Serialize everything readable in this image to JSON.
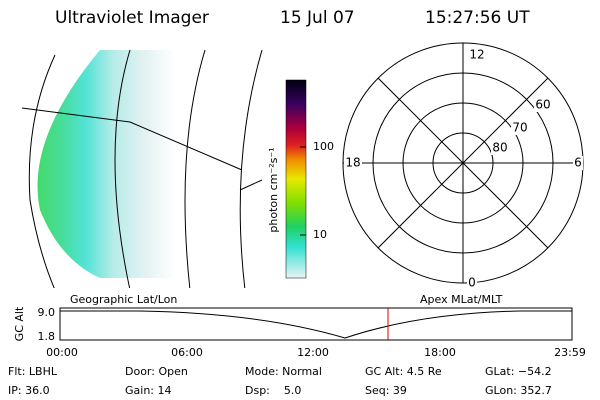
{
  "header": {
    "title": "Ultraviolet Imager",
    "date": "15 Jul 07",
    "time": "15:27:56 UT"
  },
  "colorbar": {
    "label": "photon cm⁻²s⁻¹",
    "ticks": [
      "100",
      "10"
    ]
  },
  "polar": {
    "mlt_labels": [
      "12",
      "18",
      "6",
      "0"
    ],
    "lat_labels": [
      "60",
      "70",
      "80"
    ]
  },
  "timeline": {
    "left_title": "Geographic Lat/Lon",
    "right_title": "Apex MLat/MLT",
    "y_label": "GC Alt",
    "y_labels": [
      "9.0",
      "1.8"
    ],
    "x_labels": [
      "00:00",
      "06:00",
      "12:00",
      "18:00",
      "23:59"
    ]
  },
  "status": {
    "rows": [
      [
        "Flt: LBHL",
        "Door: Open",
        "Mode: Normal",
        "GC Alt: 4.5 Re",
        "GLat: −54.2"
      ],
      [
        "IP: 36.0",
        "Gain: 14",
        "Dsp:    5.0",
        "Seq: 39",
        "GLon: 352.7"
      ]
    ]
  }
}
